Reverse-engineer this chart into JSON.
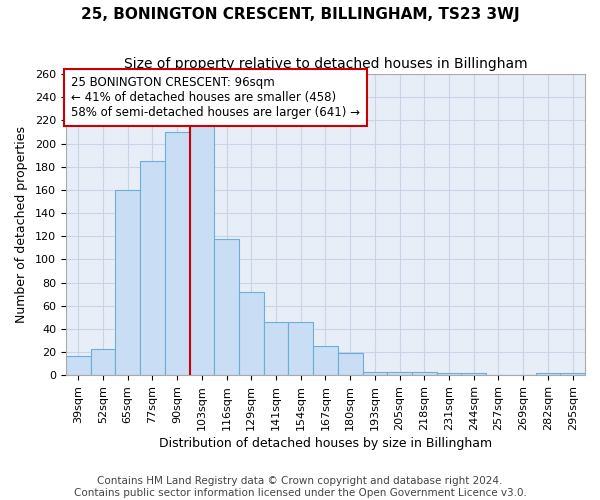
{
  "title": "25, BONINGTON CRESCENT, BILLINGHAM, TS23 3WJ",
  "subtitle": "Size of property relative to detached houses in Billingham",
  "xlabel": "Distribution of detached houses by size in Billingham",
  "ylabel": "Number of detached properties",
  "bar_labels": [
    "39sqm",
    "52sqm",
    "65sqm",
    "77sqm",
    "90sqm",
    "103sqm",
    "116sqm",
    "129sqm",
    "141sqm",
    "154sqm",
    "167sqm",
    "180sqm",
    "193sqm",
    "205sqm",
    "218sqm",
    "231sqm",
    "244sqm",
    "257sqm",
    "269sqm",
    "282sqm",
    "295sqm"
  ],
  "bar_values": [
    17,
    23,
    160,
    185,
    210,
    215,
    118,
    72,
    46,
    46,
    25,
    19,
    3,
    3,
    3,
    2,
    2,
    0,
    0,
    2,
    2
  ],
  "bar_color": "#c9ddf5",
  "bar_edge_color": "#6baed6",
  "ref_line_x": 4.5,
  "ref_line_label": "25 BONINGTON CRESCENT: 96sqm",
  "ref_line_smaller": "← 41% of detached houses are smaller (458)",
  "ref_line_larger": "58% of semi-detached houses are larger (641) →",
  "ref_line_color": "#cc0000",
  "annotation_box_edge": "#cc0000",
  "ylim": [
    0,
    260
  ],
  "yticks": [
    0,
    20,
    40,
    60,
    80,
    100,
    120,
    140,
    160,
    180,
    200,
    220,
    240,
    260
  ],
  "footer1": "Contains HM Land Registry data © Crown copyright and database right 2024.",
  "footer2": "Contains public sector information licensed under the Open Government Licence v3.0.",
  "background_color": "#ffffff",
  "plot_bg_color": "#e8eef7",
  "grid_color": "#c8d4e8",
  "title_fontsize": 11,
  "subtitle_fontsize": 10,
  "xlabel_fontsize": 9,
  "ylabel_fontsize": 9,
  "tick_fontsize": 8,
  "footer_fontsize": 7.5,
  "annot_fontsize": 8.5
}
